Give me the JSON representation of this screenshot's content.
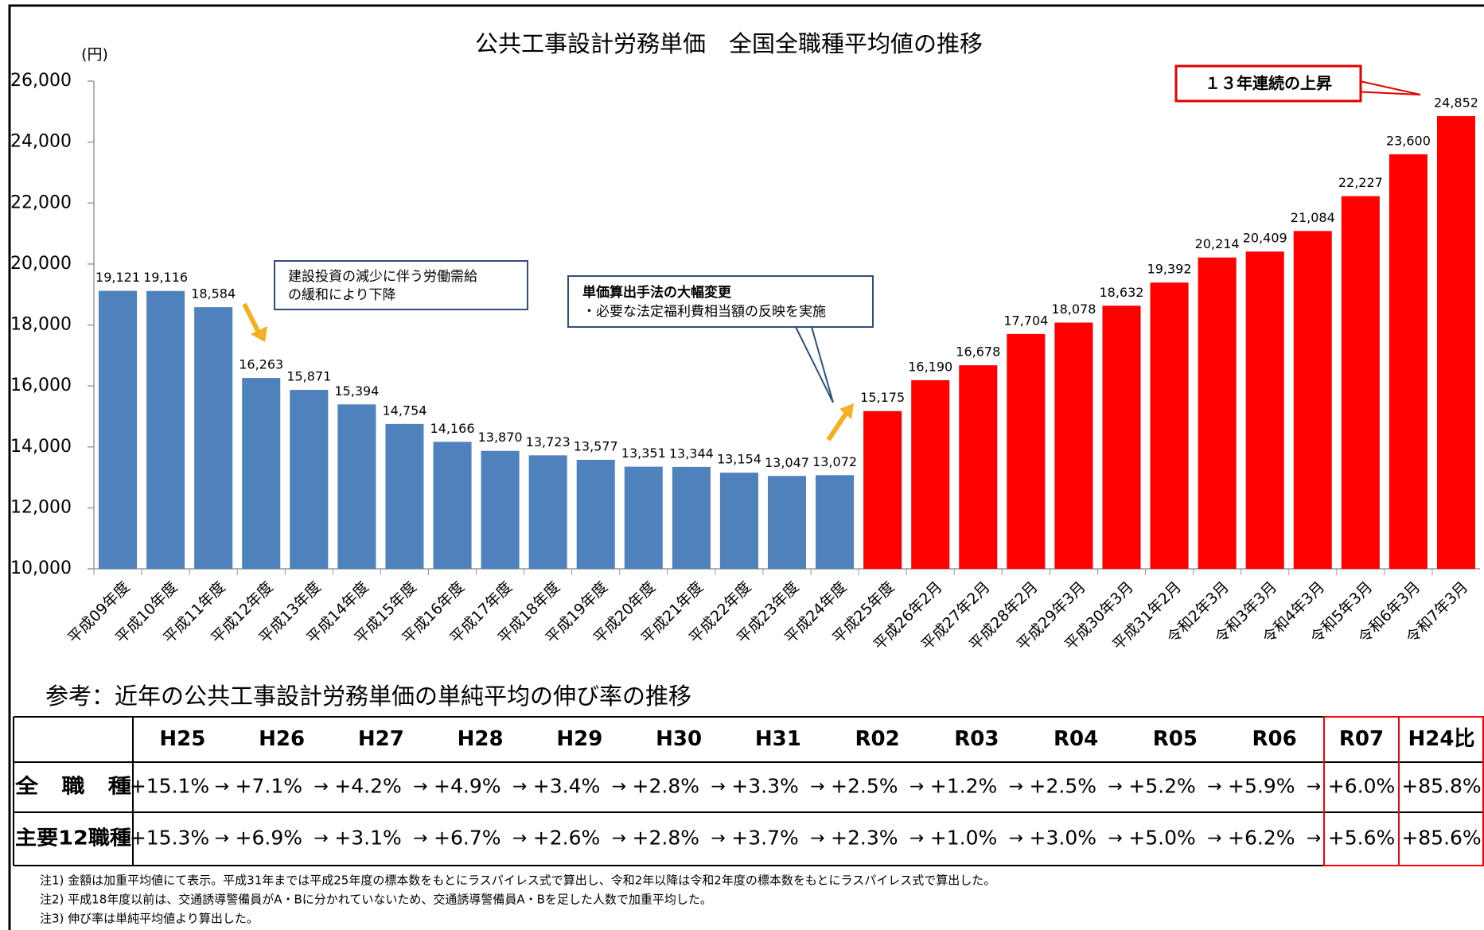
{
  "chart_data": {
    "type": "bar",
    "title": "公共工事設計労務単価　全国全職種平均値の推移",
    "y_unit": "(円)",
    "categories": [
      "平成09年度",
      "平成10年度",
      "平成11年度",
      "平成12年度",
      "平成13年度",
      "平成14年度",
      "平成15年度",
      "平成16年度",
      "平成17年度",
      "平成18年度",
      "平成19年度",
      "平成20年度",
      "平成21年度",
      "平成22年度",
      "平成23年度",
      "平成24年度",
      "平成25年度",
      "平成26年2月",
      "平成27年2月",
      "平成28年2月",
      "平成29年3月",
      "平成30年3月",
      "平成31年2月",
      "令和2年3月",
      "令和3年3月",
      "令和4年3月",
      "令和5年3月",
      "令和6年3月",
      "令和7年3月"
    ],
    "values": [
      19121,
      19116,
      18584,
      16263,
      15871,
      15394,
      14754,
      14166,
      13870,
      13723,
      13577,
      13351,
      13344,
      13154,
      13047,
      13072,
      15175,
      16190,
      16678,
      17704,
      18078,
      18632,
      19392,
      20214,
      20409,
      21084,
      22227,
      23600,
      24852
    ],
    "value_labels": [
      "19,121",
      "19,116",
      "18,584",
      "16,263",
      "15,871",
      "15,394",
      "14,754",
      "14,166",
      "13,870",
      "13,723",
      "13,577",
      "13,351",
      "13,344",
      "13,154",
      "13,047",
      "13,072",
      "15,175",
      "16,190",
      "16,678",
      "17,704",
      "18,078",
      "18,632",
      "19,392",
      "20,214",
      "20,409",
      "21,084",
      "22,227",
      "23,600",
      "24,852"
    ],
    "colors": [
      "#4f81bd",
      "#4f81bd",
      "#4f81bd",
      "#4f81bd",
      "#4f81bd",
      "#4f81bd",
      "#4f81bd",
      "#4f81bd",
      "#4f81bd",
      "#4f81bd",
      "#4f81bd",
      "#4f81bd",
      "#4f81bd",
      "#4f81bd",
      "#4f81bd",
      "#4f81bd",
      "#ff0000",
      "#ff0000",
      "#ff0000",
      "#ff0000",
      "#ff0000",
      "#ff0000",
      "#ff0000",
      "#ff0000",
      "#ff0000",
      "#ff0000",
      "#ff0000",
      "#ff0000",
      "#ff0000"
    ],
    "ylim": [
      10000,
      26000
    ],
    "yticks": [
      {
        "value": 10000,
        "label": "10,000"
      },
      {
        "value": 12000,
        "label": "12,000"
      },
      {
        "value": 14000,
        "label": "14,000"
      },
      {
        "value": 16000,
        "label": "16,000"
      },
      {
        "value": 18000,
        "label": "18,000"
      },
      {
        "value": 20000,
        "label": "20,000"
      },
      {
        "value": 22000,
        "label": "22,000"
      },
      {
        "value": 24000,
        "label": "24,000"
      },
      {
        "value": 26000,
        "label": "26,000"
      }
    ],
    "annotations": {
      "decline": [
        "建設投資の減少に伴う労働需給",
        "の緩和により下降"
      ],
      "method": [
        "単価算出手法の大幅変更",
        "・必要な法定福利費相当額の反映を実施"
      ],
      "streak": "１３年連続の上昇"
    }
  },
  "table": {
    "subtitle": "参考：近年の公共工事設計労務単価の単純平均の伸び率の推移",
    "header": [
      "H25",
      "H26",
      "H27",
      "H28",
      "H29",
      "H30",
      "H31",
      "R02",
      "R03",
      "R04",
      "R05",
      "R06",
      "R07",
      "H24比"
    ],
    "arrow": "→",
    "rows": [
      {
        "label": "全　職　種",
        "values": [
          "+15.1%",
          "+7.1%",
          "+4.2%",
          "+4.9%",
          "+3.4%",
          "+2.8%",
          "+3.3%",
          "+2.5%",
          "+1.2%",
          "+2.5%",
          "+5.2%",
          "+5.9%",
          "+6.0%",
          "+85.8%"
        ]
      },
      {
        "label": "主要12職種",
        "values": [
          "+15.3%",
          "+6.9%",
          "+3.1%",
          "+6.7%",
          "+2.6%",
          "+2.8%",
          "+3.7%",
          "+2.3%",
          "+1.0%",
          "+3.0%",
          "+5.0%",
          "+6.2%",
          "+5.6%",
          "+85.6%"
        ]
      }
    ]
  },
  "notes": [
    "注1) 金額は加重平均値にて表示。平成31年までは平成25年度の標本数をもとにラスパイレス式で算出し、令和2年以降は令和2年度の標本数をもとにラスパイレス式で算出した。",
    "注2) 平成18年度以前は、交通誘導警備員がA・Bに分かれていないため、交通誘導警備員A・Bを足した人数で加重平均した。",
    "注3) 伸び率は単純平均値より算出した。"
  ]
}
